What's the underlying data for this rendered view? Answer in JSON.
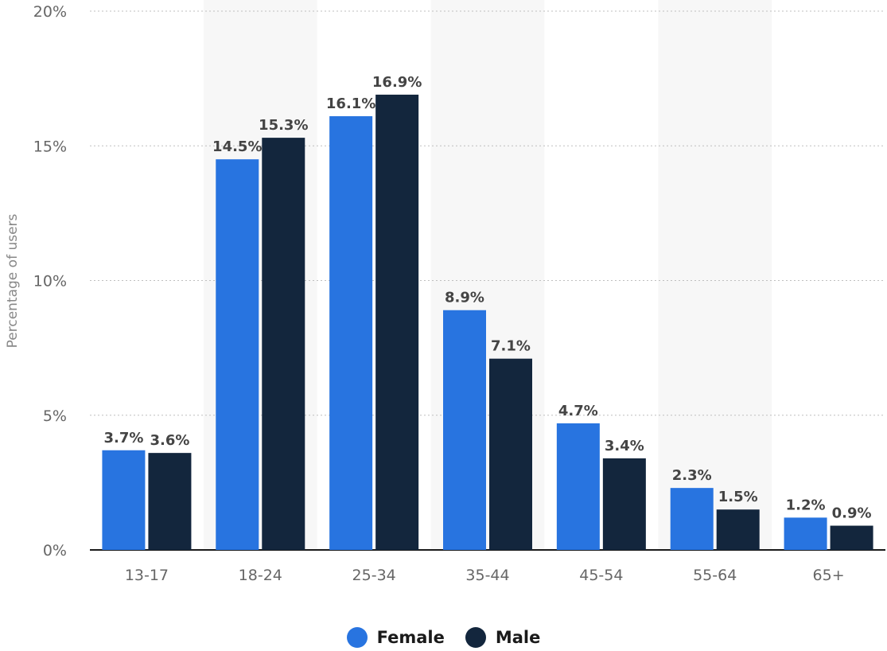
{
  "chart_data": {
    "type": "bar",
    "categories": [
      "13-17",
      "18-24",
      "25-34",
      "35-44",
      "45-54",
      "55-64",
      "65+"
    ],
    "series": [
      {
        "name": "Female",
        "color": "#2874e0",
        "values": [
          3.7,
          14.5,
          16.1,
          8.9,
          4.7,
          2.3,
          1.2
        ],
        "labels": [
          "3.7%",
          "14.5%",
          "16.1%",
          "8.9%",
          "4.7%",
          "2.3%",
          "1.2%"
        ]
      },
      {
        "name": "Male",
        "color": "#13263d",
        "values": [
          3.6,
          15.3,
          16.9,
          7.1,
          3.4,
          1.5,
          0.9
        ],
        "labels": [
          "3.6%",
          "15.3%",
          "16.9%",
          "7.1%",
          "3.4%",
          "1.5%",
          "0.9%"
        ]
      }
    ],
    "ylabel": "Percentage of users",
    "ylim": [
      0,
      20
    ],
    "yticks": [
      0,
      5,
      10,
      15,
      20
    ],
    "ytick_labels": [
      "0%",
      "5%",
      "10%",
      "15%",
      "20%"
    ],
    "grid": "dotted horizontal",
    "legend_position": "bottom-center"
  }
}
